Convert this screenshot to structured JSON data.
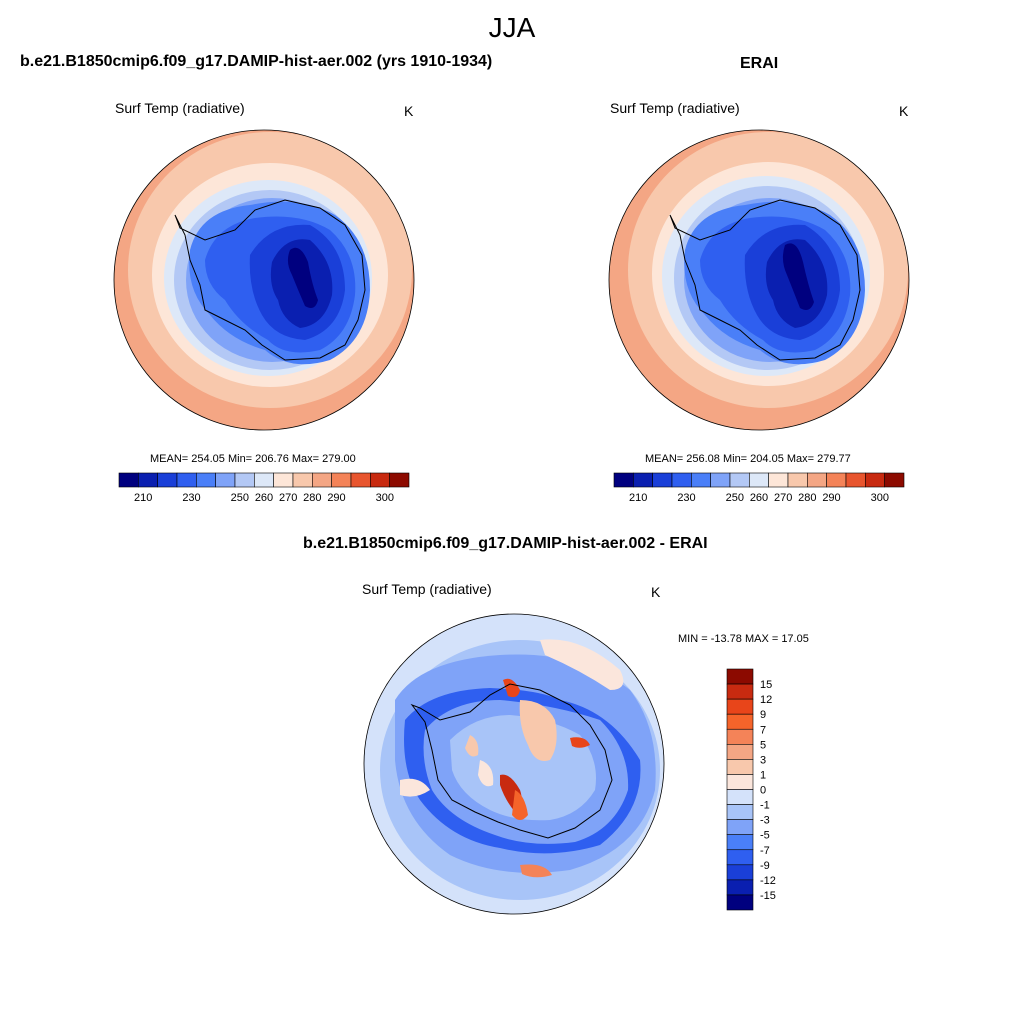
{
  "figure": {
    "title": "JJA"
  },
  "panels": {
    "model": {
      "title": "b.e21.B1850cmip6.f09_g17.DAMIP-hist-aer.002 (yrs 1910-1934)",
      "field": "Surf Temp (radiative)",
      "units": "K",
      "stats": "MEAN= 254.05  Min= 206.76  Max= 279.00"
    },
    "obs": {
      "title": "ERAI",
      "field": "Surf Temp (radiative)",
      "units": "K",
      "stats": "MEAN= 256.08  Min= 204.05  Max= 279.77"
    },
    "diff": {
      "title": "b.e21.B1850cmip6.f09_g17.DAMIP-hist-aer.002 - ERAI",
      "field": "Surf Temp (radiative)",
      "units": "K",
      "stats": "MIN = -13.78 MAX =  17.05"
    }
  },
  "colors": {
    "abs_scale": [
      "#00007f",
      "#0a1fb0",
      "#1a3fd8",
      "#2f5ff0",
      "#4a7ff8",
      "#7fa3f8",
      "#b3c8f5",
      "#dde8f8",
      "#fde6d8",
      "#f8c8ac",
      "#f4a684",
      "#f48358",
      "#e8552e",
      "#c82a10",
      "#8c0a00"
    ],
    "diff_scale": [
      "#00007f",
      "#0a1fb0",
      "#1a3fd8",
      "#2f5ff0",
      "#4a7ff8",
      "#7fa3f8",
      "#a8c4f8",
      "#d4e2fa",
      "#fbe6dc",
      "#f8c8ac",
      "#f4a684",
      "#f48358",
      "#f5642a",
      "#e8451a",
      "#c82a10",
      "#8c0a00"
    ]
  },
  "chart_data": [
    {
      "type": "heatmap",
      "projection": "south-polar-stereographic",
      "title": "b.e21.B1850cmip6.f09_g17.DAMIP-hist-aer.002 (yrs 1910-1934)",
      "variable": "Surf Temp (radiative)",
      "units": "K",
      "mean": 254.05,
      "min": 206.76,
      "max": 279.0,
      "contour_levels": [
        210,
        215,
        220,
        225,
        230,
        235,
        240,
        245,
        250,
        255,
        260,
        265,
        270,
        275,
        280,
        285,
        290,
        295,
        300
      ],
      "colorbar_labels": [
        "210",
        "230",
        "250",
        "260",
        "270",
        "280",
        "290",
        "300"
      ]
    },
    {
      "type": "heatmap",
      "projection": "south-polar-stereographic",
      "title": "ERAI",
      "variable": "Surf Temp (radiative)",
      "units": "K",
      "mean": 256.08,
      "min": 204.05,
      "max": 279.77,
      "contour_levels": [
        210,
        215,
        220,
        225,
        230,
        235,
        240,
        245,
        250,
        255,
        260,
        265,
        270,
        275,
        280,
        285,
        290,
        295,
        300
      ],
      "colorbar_labels": [
        "210",
        "230",
        "250",
        "260",
        "270",
        "280",
        "290",
        "300"
      ]
    },
    {
      "type": "heatmap",
      "projection": "south-polar-stereographic",
      "title": "b.e21.B1850cmip6.f09_g17.DAMIP-hist-aer.002 - ERAI",
      "variable": "Surf Temp (radiative)",
      "units": "K",
      "min": -13.78,
      "max": 17.05,
      "contour_levels": [
        -15,
        -12,
        -9,
        -7,
        -5,
        -3,
        -1,
        0,
        1,
        3,
        5,
        7,
        9,
        12,
        15
      ],
      "colorbar_labels": [
        "15",
        "12",
        "9",
        "7",
        "5",
        "3",
        "1",
        "0",
        "-1",
        "-3",
        "-5",
        "-7",
        "-9",
        "-12",
        "-15"
      ]
    }
  ]
}
